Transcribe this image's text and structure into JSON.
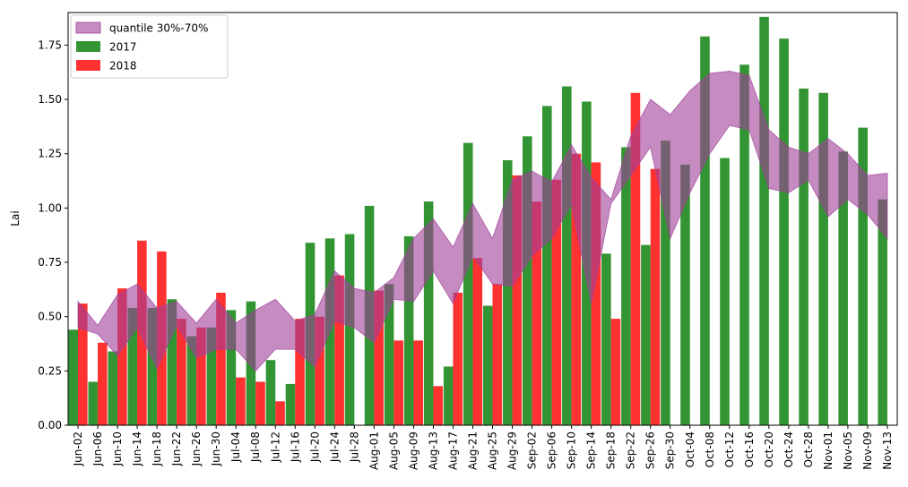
{
  "chart_data": {
    "type": "bar",
    "ylabel": "Lai",
    "ylim": [
      0,
      1.9
    ],
    "yticks": [
      0.0,
      0.25,
      0.5,
      0.75,
      1.0,
      1.25,
      1.5,
      1.75
    ],
    "ytick_labels": [
      "0.00",
      "0.25",
      "0.50",
      "0.75",
      "1.00",
      "1.25",
      "1.50",
      "1.75"
    ],
    "legend_position": "top-left",
    "categories": [
      "Jun-02",
      "Jun-06",
      "Jun-10",
      "Jun-14",
      "Jun-18",
      "Jun-22",
      "Jun-26",
      "Jun-30",
      "Jul-04",
      "Jul-08",
      "Jul-12",
      "Jul-16",
      "Jul-20",
      "Jul-24",
      "Jul-28",
      "Aug-01",
      "Aug-05",
      "Aug-09",
      "Aug-13",
      "Aug-17",
      "Aug-21",
      "Aug-25",
      "Aug-29",
      "Sep-02",
      "Sep-06",
      "Sep-10",
      "Sep-14",
      "Sep-18",
      "Sep-22",
      "Sep-26",
      "Sep-30",
      "Oct-04",
      "Oct-08",
      "Oct-12",
      "Oct-16",
      "Oct-20",
      "Oct-24",
      "Oct-28",
      "Nov-01",
      "Nov-05",
      "Nov-09",
      "Nov-13"
    ],
    "series": [
      {
        "name": "2017",
        "color": "#228B22",
        "values": [
          0.44,
          0.2,
          0.34,
          0.54,
          0.54,
          0.58,
          0.41,
          0.45,
          0.53,
          0.57,
          0.3,
          0.19,
          0.84,
          0.86,
          0.88,
          1.01,
          0.65,
          0.87,
          1.03,
          0.27,
          1.3,
          0.55,
          1.22,
          1.33,
          1.47,
          1.56,
          1.49,
          0.79,
          1.28,
          0.83,
          1.31,
          1.2,
          1.79,
          1.23,
          1.66,
          1.88,
          1.78,
          1.55,
          1.53,
          1.26,
          1.37,
          1.04
        ]
      },
      {
        "name": "2018",
        "color": "#FF2020",
        "values": [
          0.56,
          0.38,
          0.63,
          0.85,
          0.8,
          0.49,
          0.45,
          0.61,
          0.22,
          0.2,
          0.11,
          0.49,
          0.5,
          0.69,
          null,
          0.62,
          0.39,
          0.39,
          0.18,
          0.61,
          0.77,
          0.65,
          1.15,
          1.03,
          1.13,
          1.25,
          1.21,
          0.49,
          1.53,
          1.18,
          null,
          null,
          null,
          null,
          null,
          null,
          null,
          null,
          null,
          null,
          null,
          null
        ]
      }
    ],
    "band": {
      "name": "quantile 30%-70%",
      "color": "#A0409A",
      "lower": [
        0.45,
        0.42,
        0.32,
        0.45,
        0.26,
        0.46,
        0.31,
        0.35,
        0.35,
        0.25,
        0.35,
        0.35,
        0.27,
        0.48,
        0.45,
        0.38,
        0.58,
        0.57,
        0.71,
        0.56,
        0.78,
        0.65,
        0.64,
        0.78,
        0.86,
        1.02,
        0.56,
        1.02,
        1.15,
        1.28,
        0.86,
        1.07,
        1.25,
        1.38,
        1.36,
        1.09,
        1.07,
        1.13,
        0.96,
        1.04,
        0.97,
        0.86
      ],
      "upper": [
        0.57,
        0.46,
        0.6,
        0.65,
        0.54,
        0.57,
        0.47,
        0.58,
        0.47,
        0.53,
        0.58,
        0.48,
        0.51,
        0.71,
        0.63,
        0.61,
        0.68,
        0.86,
        0.95,
        0.82,
        1.02,
        0.86,
        1.13,
        1.17,
        1.12,
        1.29,
        1.14,
        1.04,
        1.33,
        1.5,
        1.43,
        1.54,
        1.62,
        1.63,
        1.61,
        1.36,
        1.28,
        1.25,
        1.32,
        1.25,
        1.15,
        1.16
      ]
    }
  }
}
